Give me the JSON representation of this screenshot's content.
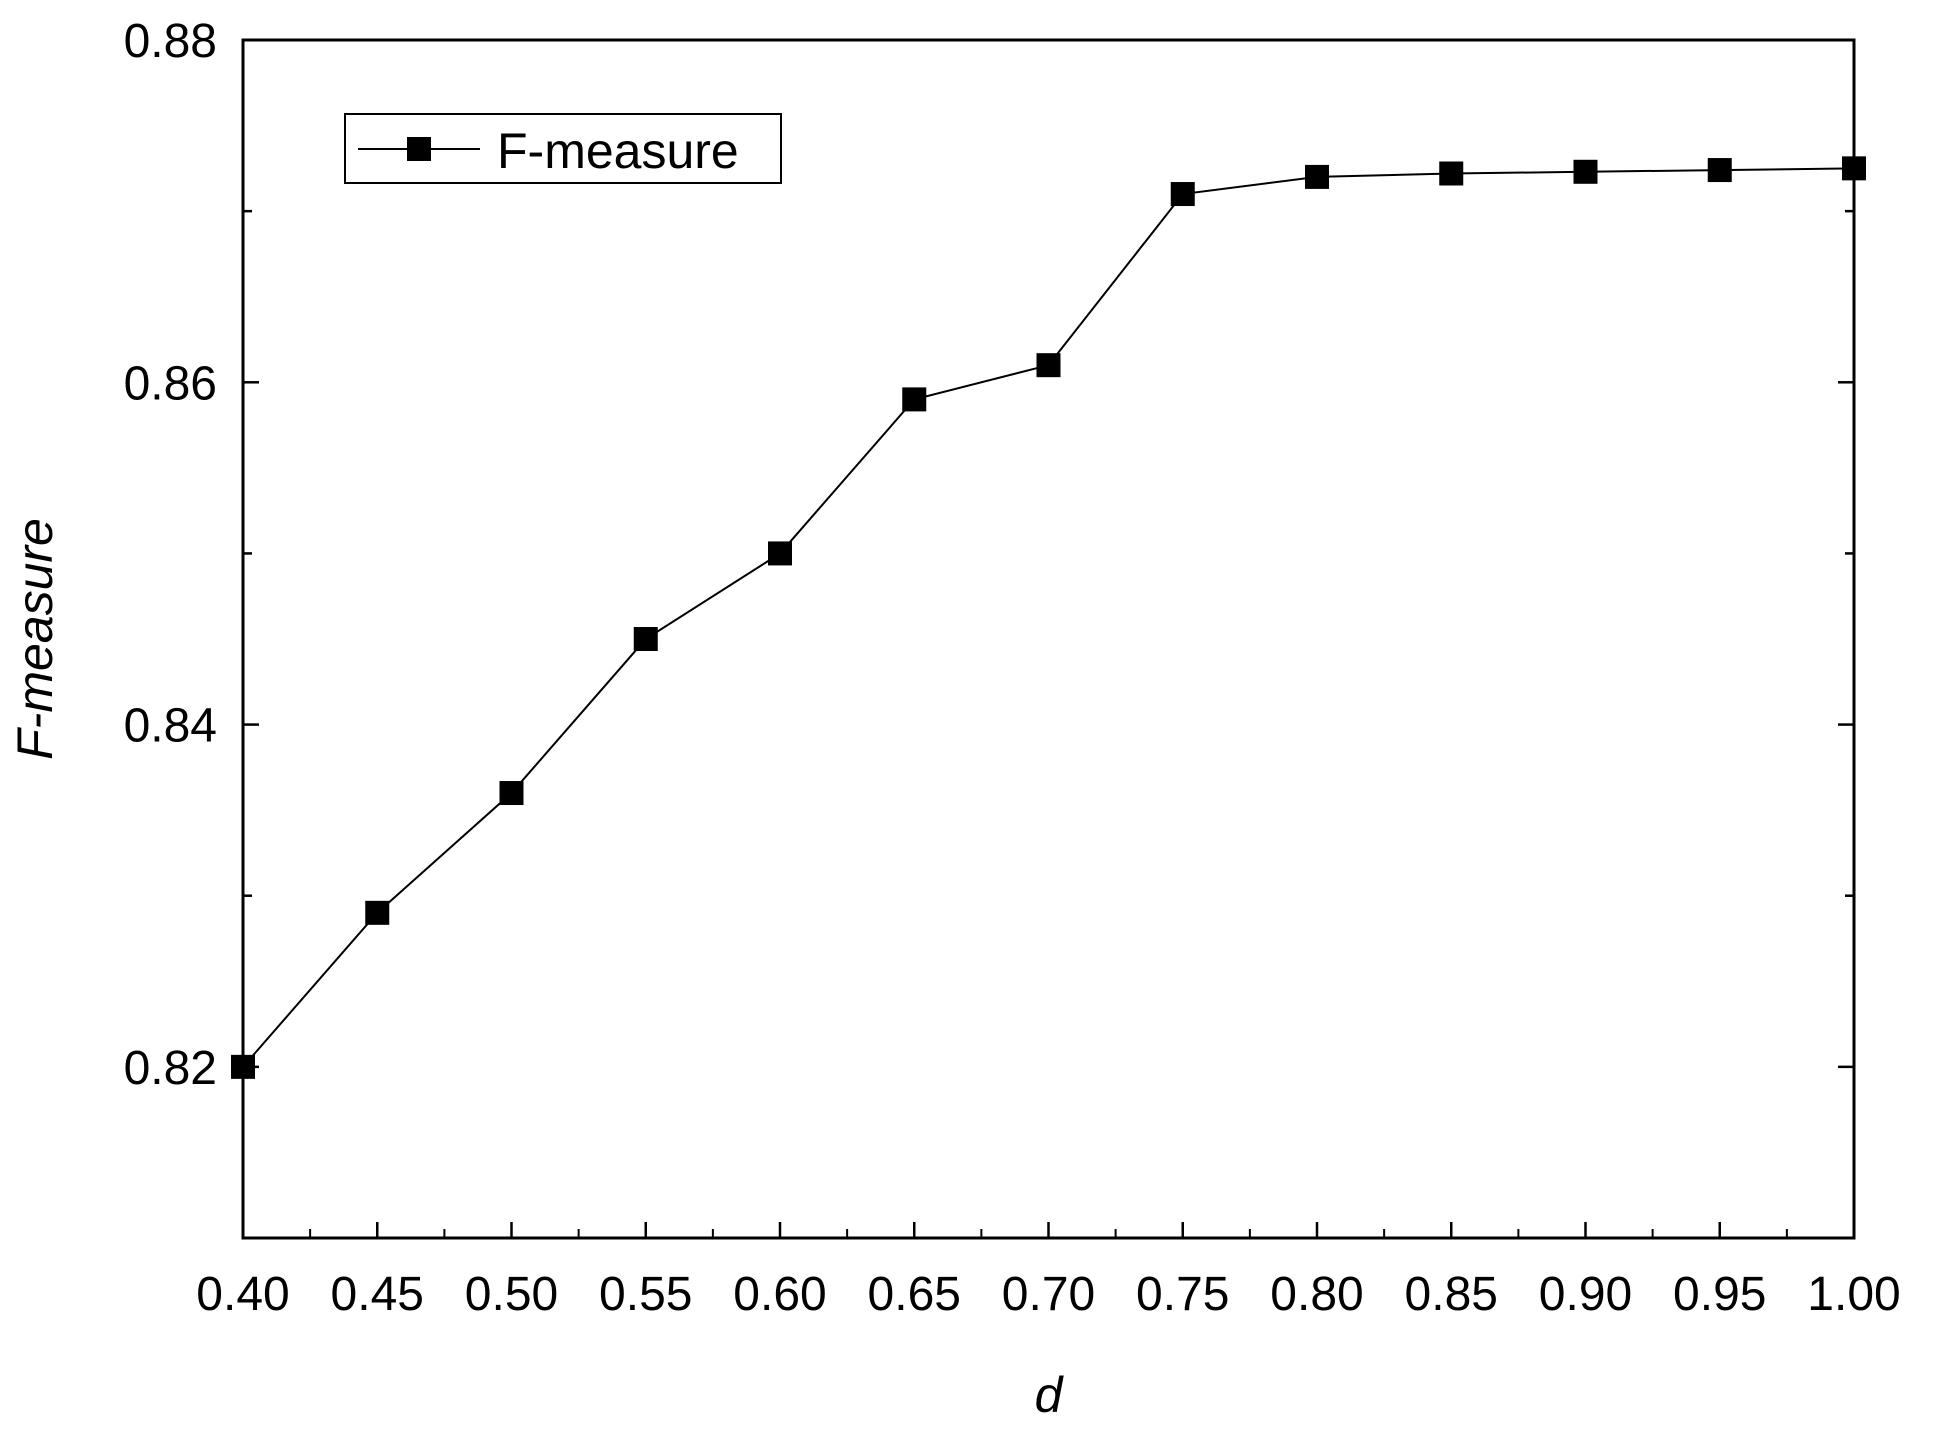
{
  "chart_data": {
    "type": "line",
    "xlabel": "d",
    "ylabel": "F-measure",
    "xlim": [
      0.4,
      1.0
    ],
    "ylim": [
      0.81,
      0.88
    ],
    "x_ticks": [
      "0.40",
      "0.45",
      "0.50",
      "0.55",
      "0.60",
      "0.65",
      "0.70",
      "0.75",
      "0.80",
      "0.85",
      "0.90",
      "0.95",
      "1.00"
    ],
    "y_ticks": [
      "0.82",
      "0.84",
      "0.86",
      "0.88"
    ],
    "y_tick_values": [
      0.82,
      0.84,
      0.86,
      0.88
    ],
    "grid": false,
    "legend": {
      "position": "top-left",
      "entries": [
        "F-measure"
      ]
    },
    "series": [
      {
        "name": "F-measure",
        "color": "#000000",
        "marker": "square",
        "x": [
          0.4,
          0.45,
          0.5,
          0.55,
          0.6,
          0.65,
          0.7,
          0.75,
          0.8,
          0.85,
          0.9,
          0.95,
          1.0
        ],
        "values": [
          0.82,
          0.829,
          0.836,
          0.845,
          0.85,
          0.859,
          0.861,
          0.871,
          0.872,
          0.8722,
          0.8723,
          0.8724,
          0.8725
        ]
      }
    ]
  }
}
